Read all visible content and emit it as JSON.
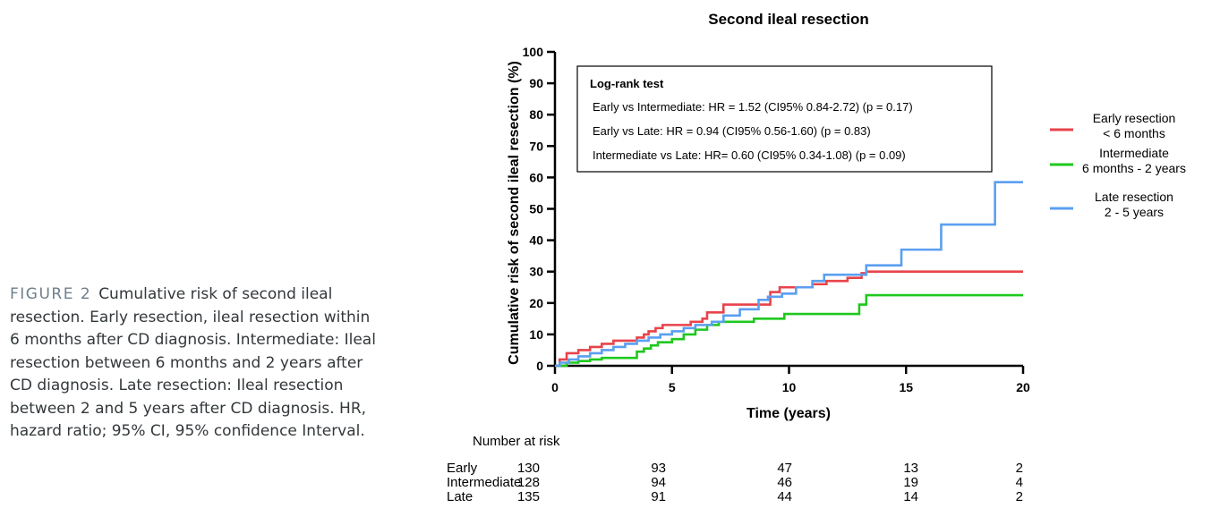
{
  "caption": {
    "label": "FIGURE 2",
    "text": "Cumulative risk of second ileal resection. Early resection, ileal resection within 6 months after CD diagnosis. Intermediate: Ileal resection between 6 months and 2 years after CD diagnosis. Late resection: Ileal resection between 2 and 5 years after CD diagnosis. HR, hazard ratio; 95% CI, 95% confidence Interval."
  },
  "chart_data": {
    "type": "line",
    "step": true,
    "title": "Second ileal resection",
    "xlabel": "Time (years)",
    "ylabel": "Cumulative risk of second ileal resection (%)",
    "xlim": [
      0,
      20
    ],
    "ylim": [
      0,
      100
    ],
    "xticks": [
      0,
      5,
      10,
      15,
      20
    ],
    "yticks": [
      0,
      10,
      20,
      30,
      40,
      50,
      60,
      70,
      80,
      90,
      100
    ],
    "grid": false,
    "legend_position": "right",
    "legend": [
      {
        "label": "Early resection\n< 6 months",
        "color": "#e8434a"
      },
      {
        "label": "Intermediate\n6 months - 2 years",
        "color": "#1ec81e"
      },
      {
        "label": "Late resection\n2 - 5 years",
        "color": "#5b9ff0"
      }
    ],
    "annotation": {
      "heading": "Log-rank test",
      "lines": [
        "Early vs Intermediate: HR = 1.52 (CI95% 0.84-2.72) (p = 0.17)",
        "Early vs Late: HR = 0.94 (CI95% 0.56-1.60) (p = 0.83)",
        "Intermediate vs Late: HR= 0.60 (CI95% 0.34-1.08)  (p = 0.09)"
      ]
    },
    "series": [
      {
        "color": "#e8434a",
        "x": [
          0,
          0.2,
          0.5,
          1.0,
          1.5,
          2.0,
          2.5,
          3.0,
          3.5,
          3.8,
          4.0,
          4.3,
          4.6,
          5.2,
          5.8,
          6.3,
          6.5,
          7.2,
          8.3,
          9.2,
          9.6,
          10.5,
          11.0,
          11.6,
          12.5,
          13.1,
          13.3,
          14.5,
          20
        ],
        "y": [
          0,
          2,
          4,
          5,
          6,
          7,
          8,
          8,
          9,
          10,
          11,
          12,
          13,
          13,
          14,
          15,
          17,
          19.5,
          19.5,
          23.5,
          25,
          25,
          26,
          27,
          28,
          29.5,
          30,
          30,
          30
        ]
      },
      {
        "color": "#1ec81e",
        "x": [
          0,
          0.5,
          1.0,
          1.5,
          2.0,
          2.5,
          3.5,
          3.8,
          4.1,
          4.4,
          5.0,
          5.5,
          6.0,
          6.5,
          7.0,
          8.5,
          9.8,
          11.0,
          13.0,
          13.3,
          15.0,
          20
        ],
        "y": [
          0,
          1,
          1.5,
          2,
          2.5,
          2.5,
          4.5,
          5.5,
          6.5,
          7.5,
          8.5,
          10,
          11.5,
          13,
          14,
          15,
          16.5,
          16.5,
          19.5,
          22.5,
          22.5,
          22.5
        ]
      },
      {
        "color": "#5b9ff0",
        "x": [
          0,
          0.2,
          0.6,
          1.0,
          1.5,
          2.0,
          2.5,
          3.0,
          3.5,
          4.0,
          4.5,
          5.0,
          5.5,
          6.0,
          6.7,
          7.2,
          7.9,
          8.7,
          9.1,
          9.7,
          10.3,
          11.0,
          11.5,
          13.3,
          14.8,
          16.5,
          18.8,
          20
        ],
        "y": [
          0,
          1,
          2,
          3,
          4,
          5,
          6,
          7,
          8,
          9,
          10,
          11,
          12,
          13,
          14,
          16,
          18,
          21,
          22,
          23,
          25,
          27,
          29,
          32,
          37,
          45,
          58.5,
          58.5
        ]
      }
    ],
    "risk_table": {
      "heading": "Number at risk",
      "times": [
        0,
        5,
        10,
        15,
        20
      ],
      "rows": [
        {
          "label": "Early",
          "values": [
            130,
            93,
            47,
            13,
            2
          ]
        },
        {
          "label": "Intermediate",
          "values": [
            128,
            94,
            46,
            19,
            4
          ]
        },
        {
          "label": "Late",
          "values": [
            135,
            91,
            44,
            14,
            2
          ]
        }
      ]
    }
  }
}
